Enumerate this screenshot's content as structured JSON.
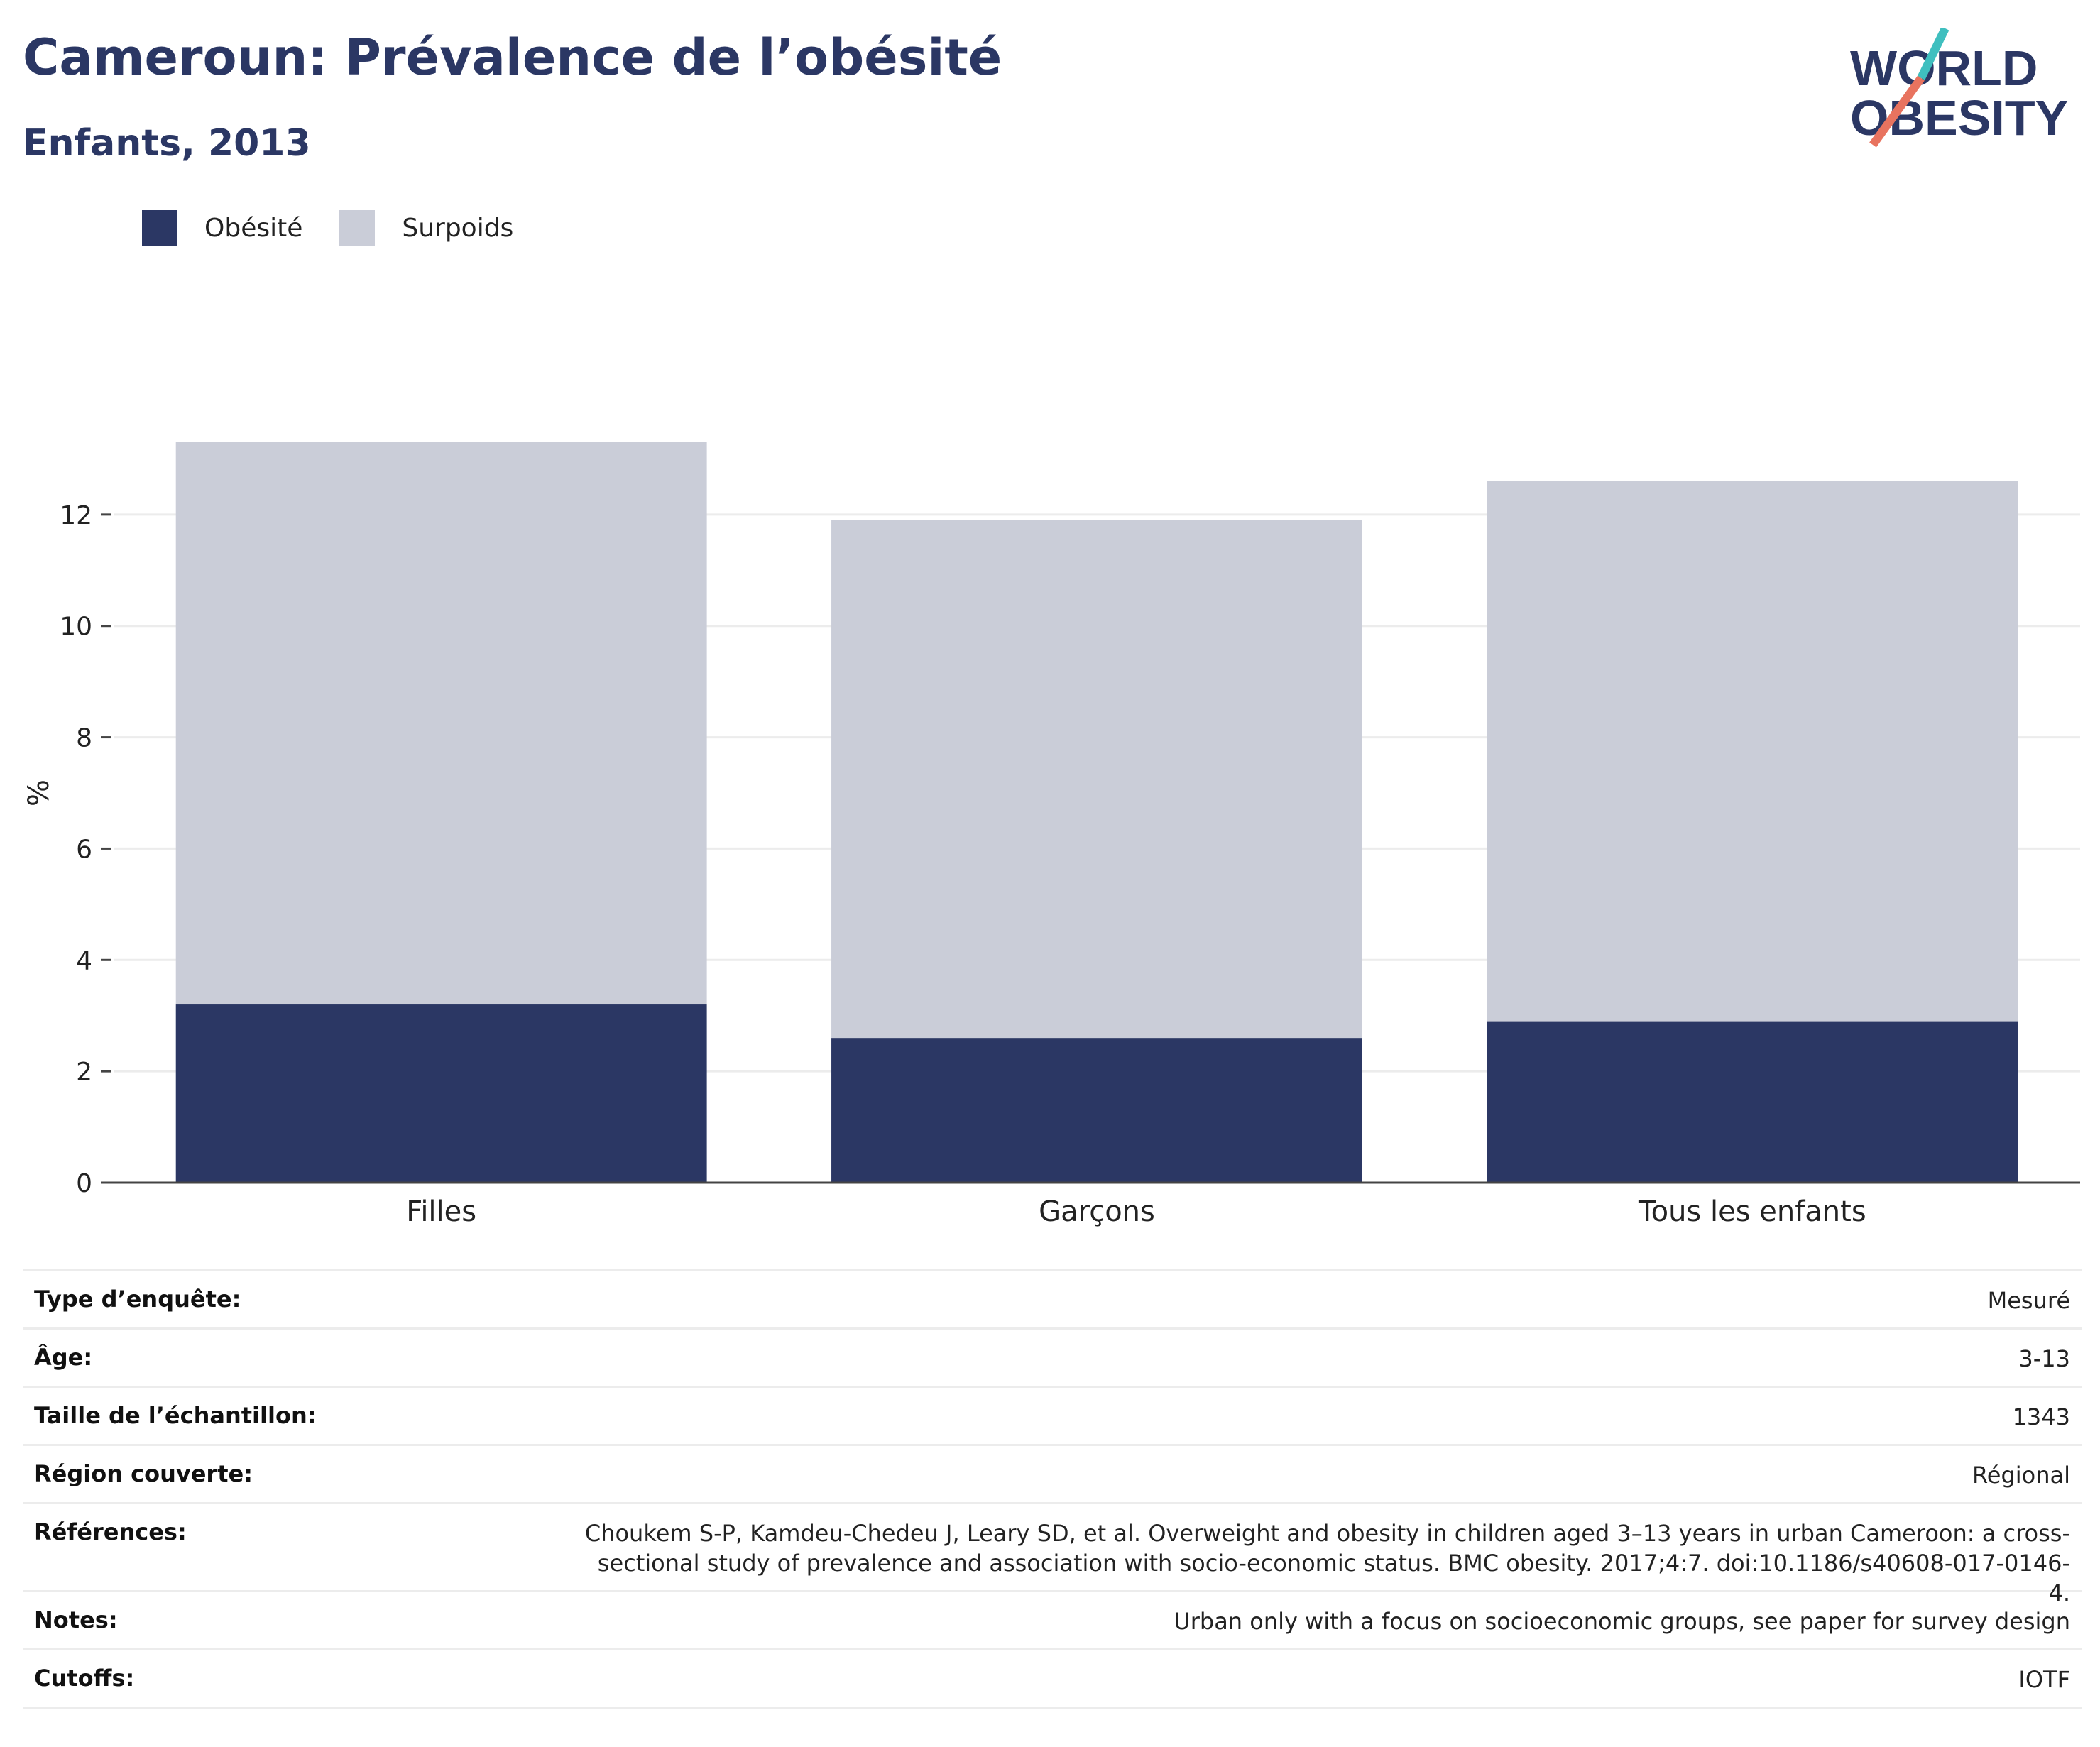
{
  "header": {
    "title": "Cameroun: Prévalence de l’obésité",
    "subtitle": "Enfants, 2013",
    "logo_line1": "WORLD",
    "logo_line2": "OBESITY"
  },
  "legend": [
    {
      "label": "Obésité",
      "color": "#2b3764"
    },
    {
      "label": "Surpoids",
      "color": "#cacdd8"
    }
  ],
  "chart_data": {
    "type": "bar",
    "stacked": true,
    "categories": [
      "Filles",
      "Garçons",
      "Tous les enfants"
    ],
    "series": [
      {
        "name": "Obésité",
        "values": [
          3.2,
          2.6,
          2.9
        ],
        "color": "#2b3764"
      },
      {
        "name": "Surpoids",
        "values": [
          10.1,
          9.3,
          9.7
        ],
        "color": "#cacdd8"
      }
    ],
    "ylabel": "%",
    "ylim": [
      0,
      14
    ],
    "yticks": [
      0,
      2,
      4,
      6,
      8,
      10,
      12
    ],
    "grid": true,
    "legend_position": "top-left"
  },
  "info": [
    {
      "key": "Type d’enquête:",
      "value": "Mesuré"
    },
    {
      "key": "Âge:",
      "value": "3-13"
    },
    {
      "key": "Taille de l’échantillon:",
      "value": "1343"
    },
    {
      "key": "Région couverte:",
      "value": "Régional"
    },
    {
      "key": "Références:",
      "value": "Choukem S-P, Kamdeu-Chedeu J, Leary SD, et al. Overweight and obesity in children aged 3–13 years in urban Cameroon: a cross-sectional study of prevalence and association with socio-economic status. BMC obesity. 2017;4:7. doi:10.1186/s40608-017-0146-4."
    },
    {
      "key": "Notes:",
      "value": "Urban only with a focus on socioeconomic groups, see paper for survey design"
    },
    {
      "key": "Cutoffs:",
      "value": "IOTF"
    }
  ]
}
